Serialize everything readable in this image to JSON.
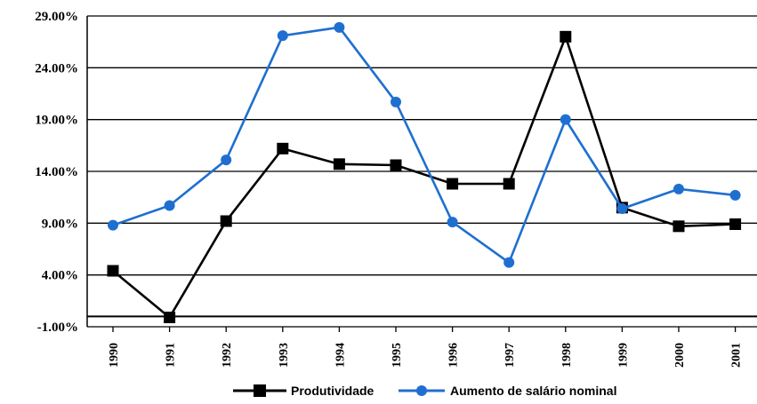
{
  "colors": {
    "produtividade": "#000000",
    "salario": "#1f6fd0",
    "grid": "#000000"
  },
  "chart_data": {
    "type": "line",
    "title": "",
    "xlabel": "",
    "ylabel": "",
    "categories": [
      "1990",
      "1991",
      "1992",
      "1993",
      "1994",
      "1995",
      "1996",
      "1997",
      "1998",
      "1999",
      "2000",
      "2001"
    ],
    "ylim": [
      -1.0,
      29.0
    ],
    "yticks": [
      -1.0,
      4.0,
      9.0,
      14.0,
      19.0,
      24.0,
      29.0
    ],
    "ytick_labels": [
      "-1.00%",
      "4.00%",
      "9.00%",
      "14.00%",
      "19.00%",
      "24.00%",
      "29.00%"
    ],
    "grid": true,
    "legend_position": "bottom",
    "series": [
      {
        "name": "Produtividade",
        "marker": "square",
        "values": [
          4.4,
          -0.1,
          9.2,
          16.2,
          14.7,
          14.6,
          12.8,
          12.8,
          27.0,
          10.5,
          8.7,
          8.9
        ]
      },
      {
        "name": "Aumento de salário nominal",
        "marker": "circle",
        "values": [
          8.8,
          10.7,
          15.1,
          27.1,
          27.9,
          20.7,
          9.1,
          5.2,
          19.0,
          10.4,
          12.3,
          11.7
        ]
      }
    ]
  }
}
